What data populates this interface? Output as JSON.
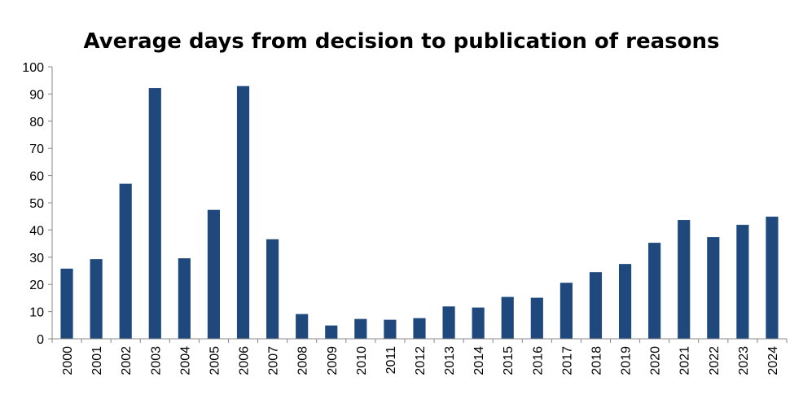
{
  "chart_data": {
    "type": "bar",
    "title": "Average days from decision to publication of reasons",
    "xlabel": "",
    "ylabel": "",
    "categories": [
      "2000",
      "2001",
      "2002",
      "2003",
      "2004",
      "2005",
      "2006",
      "2007",
      "2008",
      "2009",
      "2010",
      "2011",
      "2012",
      "2013",
      "2014",
      "2015",
      "2016",
      "2017",
      "2018",
      "2019",
      "2020",
      "2021",
      "2022",
      "2023",
      "2024"
    ],
    "values": [
      25.8,
      29.3,
      57.0,
      92.2,
      29.6,
      47.4,
      92.9,
      36.6,
      9.1,
      4.9,
      7.3,
      7.0,
      7.6,
      11.9,
      11.5,
      15.4,
      15.1,
      20.6,
      24.5,
      27.5,
      35.3,
      43.7,
      37.4,
      41.9,
      44.9
    ],
    "ylim": [
      0,
      100
    ],
    "yticks": [
      0,
      10,
      20,
      30,
      40,
      50,
      60,
      70,
      80,
      90,
      100
    ],
    "grid": false,
    "legend": "none",
    "bar_color": "#1f497d"
  }
}
